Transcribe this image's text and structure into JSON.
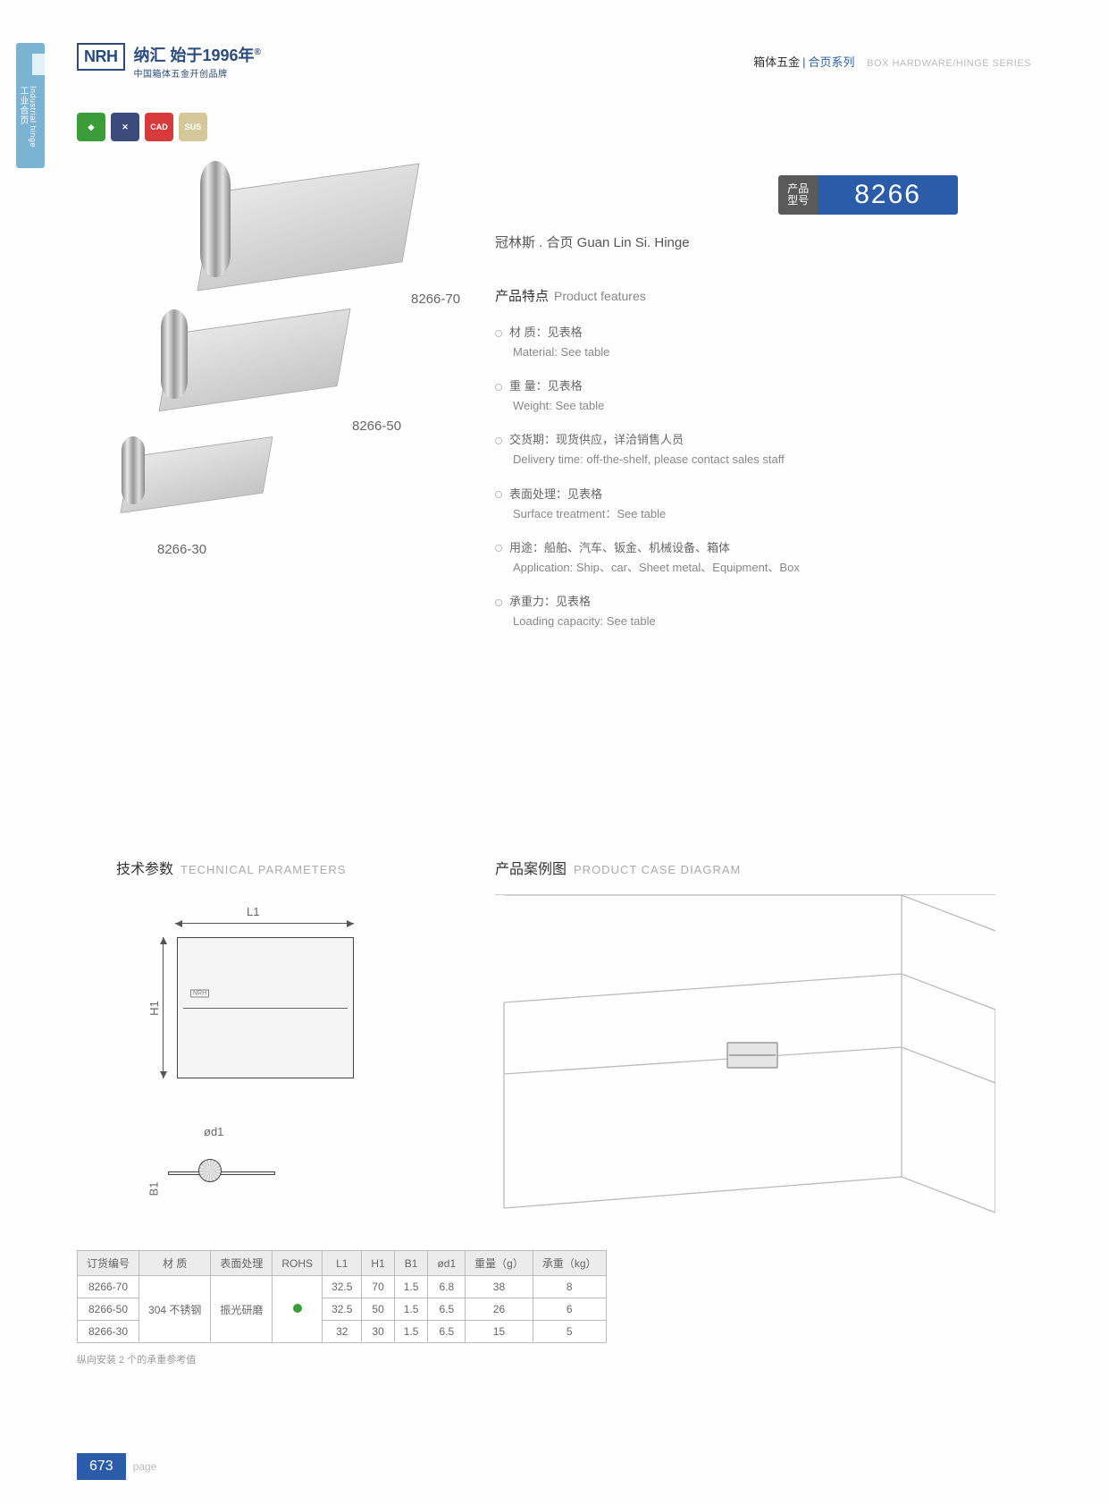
{
  "side_tab": {
    "zh": "工业合页",
    "en": "Industrial hinge"
  },
  "header": {
    "logo_box": "NRH",
    "logo_zh": "纳汇 始于1996年",
    "logo_sub": "中国箱体五金开创品牌",
    "right_zh1": "箱体五金",
    "right_zh2": "合页系列",
    "right_en": "BOX HARDWARE/HINGE SERIES"
  },
  "certs": [
    "◆",
    "✕",
    "CAD",
    "SUS"
  ],
  "product_labels": {
    "p70": "8266-70",
    "p50": "8266-50",
    "p30": "8266-30"
  },
  "model": {
    "label_l1": "产品",
    "label_l2": "型号",
    "number": "8266"
  },
  "subtitle": "冠林斯 . 合页   Guan Lin Si. Hinge",
  "features": {
    "title_zh": "产品特点",
    "title_en": "Product features",
    "items": [
      {
        "zh": "材 质：见表格",
        "en": "Material: See table"
      },
      {
        "zh": "重 量：见表格",
        "en": "Weight: See table"
      },
      {
        "zh": "交货期：现货供应，详洽销售人员",
        "en": "Delivery time: off-the-shelf, please contact sales staff"
      },
      {
        "zh": "表面处理：见表格",
        "en": "Surface treatment：See table"
      },
      {
        "zh": "用途：船舶、汽车、钣金、机械设备、箱体",
        "en": "Application: Ship、car、Sheet metal、Equipment、Box"
      },
      {
        "zh": "承重力：见表格",
        "en": "Loading capacity: See table"
      }
    ]
  },
  "sections": {
    "tech_zh": "技术参数",
    "tech_en": "TECHNICAL PARAMETERS",
    "case_zh": "产品案例图",
    "case_en": "PRODUCT CASE DIAGRAM"
  },
  "dims": {
    "l1": "L1",
    "h1": "H1",
    "od1": "ød1",
    "b1": "B1"
  },
  "table": {
    "headers": [
      "订货编号",
      "材 质",
      "表面处理",
      "ROHS",
      "L1",
      "H1",
      "B1",
      "ød1",
      "重量（g）",
      "承重（kg）"
    ],
    "material": "304 不锈钢",
    "surface": "振光研磨",
    "rows": [
      {
        "code": "8266-70",
        "l1": "32.5",
        "h1": "70",
        "b1": "1.5",
        "od1": "6.8",
        "wt": "38",
        "load": "8"
      },
      {
        "code": "8266-50",
        "l1": "32.5",
        "h1": "50",
        "b1": "1.5",
        "od1": "6.5",
        "wt": "26",
        "load": "6"
      },
      {
        "code": "8266-30",
        "l1": "32",
        "h1": "30",
        "b1": "1.5",
        "od1": "6.5",
        "wt": "15",
        "load": "5"
      }
    ],
    "note": "纵向安装 2 个的承重参考值"
  },
  "footer": {
    "page_num": "673",
    "page_label": "page"
  },
  "colors": {
    "brand": "#2a5caa",
    "accent": "#2a4b7c",
    "green": "#3a9d3a"
  }
}
